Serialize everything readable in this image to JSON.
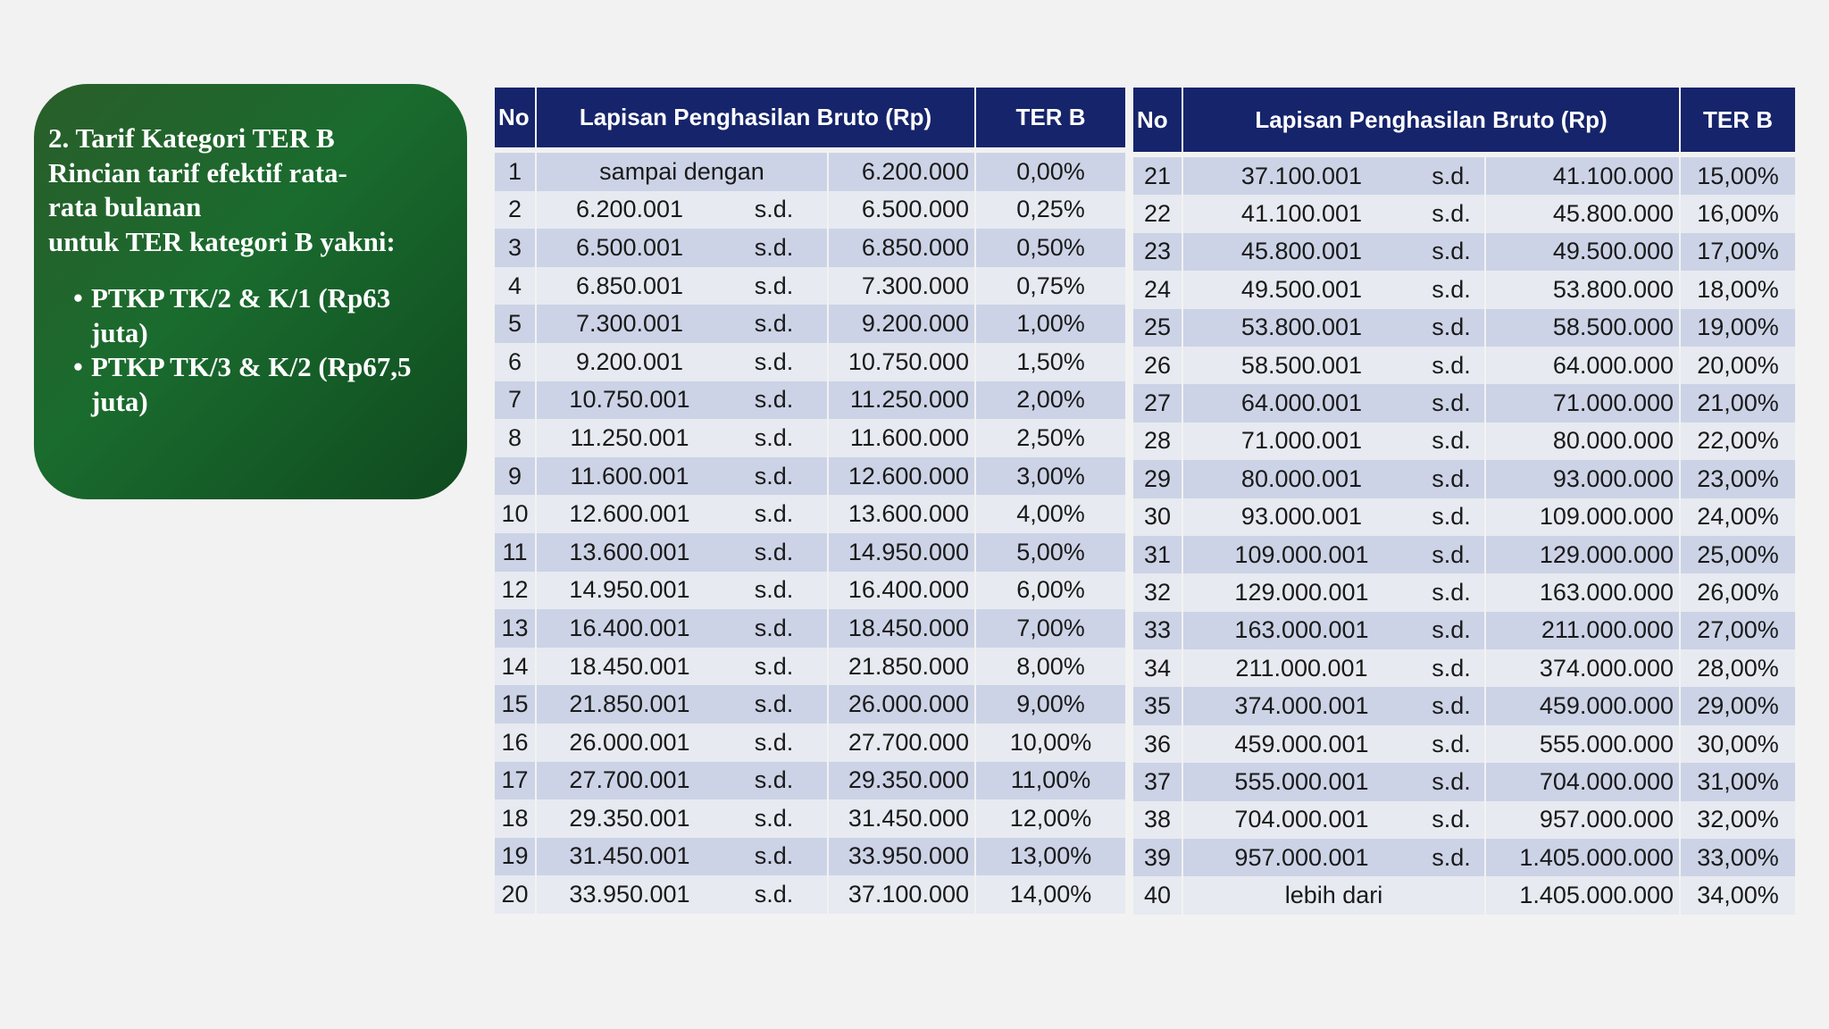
{
  "info": {
    "heading_lines": [
      "2. Tarif Kategori TER B",
      "Rincian tarif efektif rata-",
      "rata bulanan",
      "untuk TER kategori B yakni:"
    ],
    "bullets": [
      "PTKP TK/2 & K/1 (Rp63 juta)",
      "PTKP TK/3 & K/2 (Rp67,5 juta)"
    ]
  },
  "table": {
    "headers": {
      "no": "No",
      "range": "Lapisan Penghasilan Bruto (Rp)",
      "rate": "TER B"
    },
    "left_rows": [
      {
        "no": "1",
        "from": "sampai dengan",
        "sd": "",
        "to": "6.200.000",
        "rate": "0,00%"
      },
      {
        "no": "2",
        "from": "6.200.001",
        "sd": "s.d.",
        "to": "6.500.000",
        "rate": "0,25%"
      },
      {
        "no": "3",
        "from": "6.500.001",
        "sd": "s.d.",
        "to": "6.850.000",
        "rate": "0,50%"
      },
      {
        "no": "4",
        "from": "6.850.001",
        "sd": "s.d.",
        "to": "7.300.000",
        "rate": "0,75%"
      },
      {
        "no": "5",
        "from": "7.300.001",
        "sd": "s.d.",
        "to": "9.200.000",
        "rate": "1,00%"
      },
      {
        "no": "6",
        "from": "9.200.001",
        "sd": "s.d.",
        "to": "10.750.000",
        "rate": "1,50%"
      },
      {
        "no": "7",
        "from": "10.750.001",
        "sd": "s.d.",
        "to": "11.250.000",
        "rate": "2,00%"
      },
      {
        "no": "8",
        "from": "11.250.001",
        "sd": "s.d.",
        "to": "11.600.000",
        "rate": "2,50%"
      },
      {
        "no": "9",
        "from": "11.600.001",
        "sd": "s.d.",
        "to": "12.600.000",
        "rate": "3,00%"
      },
      {
        "no": "10",
        "from": "12.600.001",
        "sd": "s.d.",
        "to": "13.600.000",
        "rate": "4,00%"
      },
      {
        "no": "11",
        "from": "13.600.001",
        "sd": "s.d.",
        "to": "14.950.000",
        "rate": "5,00%"
      },
      {
        "no": "12",
        "from": "14.950.001",
        "sd": "s.d.",
        "to": "16.400.000",
        "rate": "6,00%"
      },
      {
        "no": "13",
        "from": "16.400.001",
        "sd": "s.d.",
        "to": "18.450.000",
        "rate": "7,00%"
      },
      {
        "no": "14",
        "from": "18.450.001",
        "sd": "s.d.",
        "to": "21.850.000",
        "rate": "8,00%"
      },
      {
        "no": "15",
        "from": "21.850.001",
        "sd": "s.d.",
        "to": "26.000.000",
        "rate": "9,00%"
      },
      {
        "no": "16",
        "from": "26.000.001",
        "sd": "s.d.",
        "to": "27.700.000",
        "rate": "10,00%"
      },
      {
        "no": "17",
        "from": "27.700.001",
        "sd": "s.d.",
        "to": "29.350.000",
        "rate": "11,00%"
      },
      {
        "no": "18",
        "from": "29.350.001",
        "sd": "s.d.",
        "to": "31.450.000",
        "rate": "12,00%"
      },
      {
        "no": "19",
        "from": "31.450.001",
        "sd": "s.d.",
        "to": "33.950.000",
        "rate": "13,00%"
      },
      {
        "no": "20",
        "from": "33.950.001",
        "sd": "s.d.",
        "to": "37.100.000",
        "rate": "14,00%"
      }
    ],
    "right_rows": [
      {
        "no": "21",
        "from": "37.100.001",
        "sd": "s.d.",
        "to": "41.100.000",
        "rate": "15,00%"
      },
      {
        "no": "22",
        "from": "41.100.001",
        "sd": "s.d.",
        "to": "45.800.000",
        "rate": "16,00%"
      },
      {
        "no": "23",
        "from": "45.800.001",
        "sd": "s.d.",
        "to": "49.500.000",
        "rate": "17,00%"
      },
      {
        "no": "24",
        "from": "49.500.001",
        "sd": "s.d.",
        "to": "53.800.000",
        "rate": "18,00%"
      },
      {
        "no": "25",
        "from": "53.800.001",
        "sd": "s.d.",
        "to": "58.500.000",
        "rate": "19,00%"
      },
      {
        "no": "26",
        "from": "58.500.001",
        "sd": "s.d.",
        "to": "64.000.000",
        "rate": "20,00%"
      },
      {
        "no": "27",
        "from": "64.000.001",
        "sd": "s.d.",
        "to": "71.000.000",
        "rate": "21,00%"
      },
      {
        "no": "28",
        "from": "71.000.001",
        "sd": "s.d.",
        "to": "80.000.000",
        "rate": "22,00%"
      },
      {
        "no": "29",
        "from": "80.000.001",
        "sd": "s.d.",
        "to": "93.000.000",
        "rate": "23,00%"
      },
      {
        "no": "30",
        "from": "93.000.001",
        "sd": "s.d.",
        "to": "109.000.000",
        "rate": "24,00%"
      },
      {
        "no": "31",
        "from": "109.000.001",
        "sd": "s.d.",
        "to": "129.000.000",
        "rate": "25,00%"
      },
      {
        "no": "32",
        "from": "129.000.001",
        "sd": "s.d.",
        "to": "163.000.000",
        "rate": "26,00%"
      },
      {
        "no": "33",
        "from": "163.000.001",
        "sd": "s.d.",
        "to": "211.000.000",
        "rate": "27,00%"
      },
      {
        "no": "34",
        "from": "211.000.001",
        "sd": "s.d.",
        "to": "374.000.000",
        "rate": "28,00%"
      },
      {
        "no": "35",
        "from": "374.000.001",
        "sd": "s.d.",
        "to": "459.000.000",
        "rate": "29,00%"
      },
      {
        "no": "36",
        "from": "459.000.001",
        "sd": "s.d.",
        "to": "555.000.000",
        "rate": "30,00%"
      },
      {
        "no": "37",
        "from": "555.000.001",
        "sd": "s.d.",
        "to": "704.000.000",
        "rate": "31,00%"
      },
      {
        "no": "38",
        "from": "704.000.001",
        "sd": "s.d.",
        "to": "957.000.000",
        "rate": "32,00%"
      },
      {
        "no": "39",
        "from": "957.000.001",
        "sd": "s.d.",
        "to": "1.405.000.000",
        "rate": "33,00%"
      },
      {
        "no": "40",
        "from": "lebih dari",
        "sd": "",
        "to": "1.405.000.000",
        "rate": "34,00%"
      }
    ]
  }
}
